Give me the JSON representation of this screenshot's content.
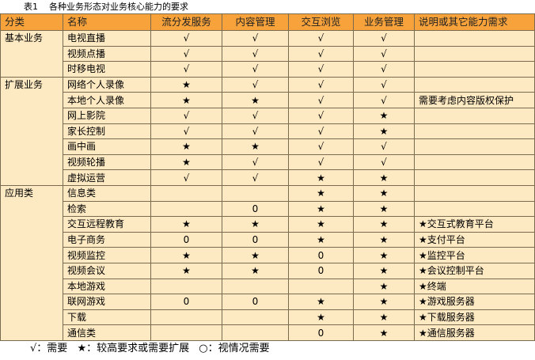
{
  "caption": {
    "label": "表1",
    "title": "各种业务形态对业务核心能力的要求"
  },
  "headers": [
    "分类",
    "名称",
    "流分发服务",
    "内容管理",
    "交互浏览",
    "业务管理",
    "说明或其它能力需求"
  ],
  "groups": [
    {
      "category": "基本业务",
      "rows": [
        [
          "电视直播",
          "√",
          "√",
          "√",
          "√",
          ""
        ],
        [
          "视频点播",
          "√",
          "√",
          "√",
          "√",
          ""
        ],
        [
          "时移电视",
          "√",
          "√",
          "√",
          "√",
          ""
        ]
      ]
    },
    {
      "category": "扩展业务",
      "rows": [
        [
          "网络个人录像",
          "★",
          "√",
          "√",
          "√",
          ""
        ],
        [
          "本地个人录像",
          "★",
          "★",
          "√",
          "√",
          "需要考虑内容版权保护"
        ],
        [
          "网上影院",
          "√",
          "√",
          "√",
          "★",
          ""
        ],
        [
          "家长控制",
          "√",
          "√",
          "√",
          "★",
          ""
        ],
        [
          "画中画",
          "★",
          "★",
          "√",
          "√",
          ""
        ],
        [
          "视频轮播",
          "★",
          "√",
          "√",
          "√",
          ""
        ],
        [
          "虚拟运营",
          "√",
          "√",
          "★",
          "★",
          ""
        ]
      ]
    },
    {
      "category": "应用类",
      "rows": [
        [
          "信息类",
          "",
          "",
          "★",
          "★",
          ""
        ],
        [
          "检索",
          "",
          "0",
          "★",
          "★",
          ""
        ],
        [
          "交互远程教育",
          "★",
          "★",
          "★",
          "★",
          "★交互式教育平台"
        ],
        [
          "电子商务",
          "0",
          "0",
          "★",
          "★",
          "★支付平台"
        ],
        [
          "视频监控",
          "★",
          "★",
          "0",
          "★",
          "★监控平台"
        ],
        [
          "视频会议",
          "★",
          "★",
          "0",
          "★",
          "★会议控制平台"
        ],
        [
          "本地游戏",
          "",
          "",
          "",
          "★",
          "★终端"
        ],
        [
          "联网游戏",
          "0",
          "0",
          "★",
          "★",
          "★游戏服务器"
        ],
        [
          "下载",
          "",
          "",
          "★",
          "★",
          "★下载服务器"
        ],
        [
          "通信类",
          "",
          "",
          "0",
          "★",
          "★通信服务器"
        ]
      ]
    }
  ],
  "legend": [
    "√：需要",
    "★：较高要求或需要扩展",
    "○：视情况需要"
  ]
}
